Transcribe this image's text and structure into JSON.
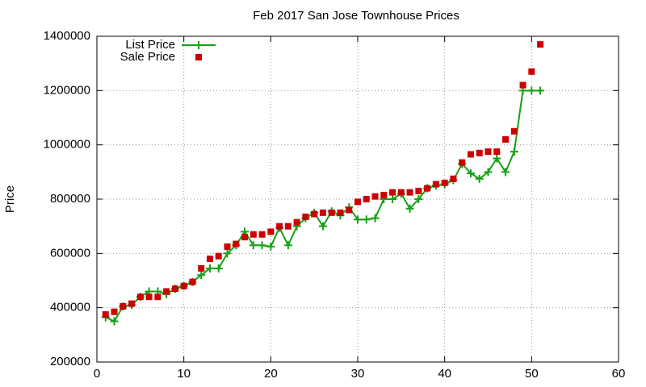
{
  "chart_data": {
    "type": "line",
    "title": "Feb 2017 San Jose Townhouse Prices",
    "y_label": "Price",
    "x": [
      1,
      2,
      3,
      4,
      5,
      6,
      7,
      8,
      9,
      10,
      11,
      12,
      13,
      14,
      15,
      16,
      17,
      18,
      19,
      20,
      21,
      22,
      23,
      24,
      25,
      26,
      27,
      28,
      29,
      30,
      31,
      32,
      33,
      34,
      35,
      36,
      37,
      38,
      39,
      40,
      41,
      42,
      43,
      44,
      45,
      46,
      47,
      48,
      49,
      50,
      51
    ],
    "series": [
      {
        "name": "List Price",
        "color": "#16a016",
        "style": "linespoints",
        "values": [
          365000,
          350000,
          405000,
          410000,
          440000,
          460000,
          460000,
          450000,
          470000,
          480000,
          495000,
          520000,
          545000,
          545000,
          600000,
          630000,
          680000,
          630000,
          630000,
          625000,
          695000,
          630000,
          700000,
          730000,
          750000,
          700000,
          755000,
          740000,
          770000,
          725000,
          725000,
          730000,
          800000,
          800000,
          820000,
          765000,
          800000,
          840000,
          850000,
          855000,
          870000,
          930000,
          895000,
          875000,
          900000,
          950000,
          900000,
          975000,
          1200000,
          1200000,
          1200000
        ]
      },
      {
        "name": "Sale Price",
        "color": "#cc0000",
        "style": "points",
        "values": [
          375000,
          385000,
          405000,
          415000,
          440000,
          440000,
          440000,
          460000,
          470000,
          480000,
          495000,
          545000,
          580000,
          590000,
          625000,
          635000,
          660000,
          670000,
          670000,
          680000,
          700000,
          700000,
          715000,
          735000,
          745000,
          750000,
          750000,
          750000,
          760000,
          790000,
          800000,
          810000,
          815000,
          825000,
          825000,
          825000,
          830000,
          840000,
          855000,
          860000,
          875000,
          935000,
          965000,
          970000,
          975000,
          975000,
          1020000,
          1050000,
          1220000,
          1270000,
          1370000
        ]
      }
    ],
    "xlim": [
      0,
      60
    ],
    "xticks": [
      0,
      10,
      20,
      30,
      40,
      50,
      60
    ],
    "ylim": [
      200000,
      1400000
    ],
    "yticks": [
      200000,
      400000,
      600000,
      800000,
      1000000,
      1200000,
      1400000
    ],
    "grid": true,
    "legend": "top-left"
  }
}
